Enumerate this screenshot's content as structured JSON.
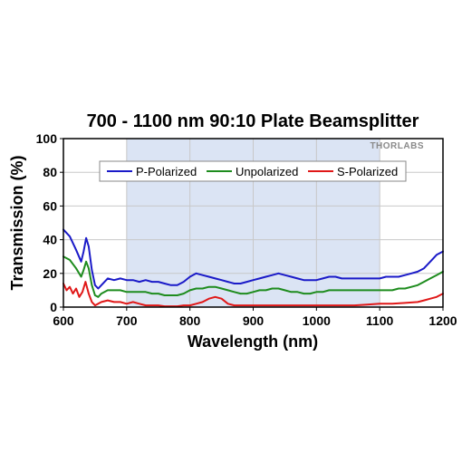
{
  "chart_data": {
    "type": "line",
    "title": "700 - 1100 nm 90:10 Plate Beamsplitter",
    "xlabel": "Wavelength (nm)",
    "ylabel": "Transmission (%)",
    "xlim": [
      600,
      1200
    ],
    "ylim": [
      0,
      100
    ],
    "xticks": [
      600,
      700,
      800,
      900,
      1000,
      1100,
      1200
    ],
    "yticks": [
      0,
      20,
      40,
      60,
      80,
      100
    ],
    "grid": true,
    "legend_position": "top-center",
    "highlight_band": [
      700,
      1100
    ],
    "watermark": "THORLABS",
    "colors": {
      "p_polarized": "#1a1ac8",
      "unpolarized": "#1e8c1e",
      "s_polarized": "#e01818",
      "band": "#dbe4f4",
      "grid": "#c8c8c8"
    },
    "series": [
      {
        "name": "P-Polarized",
        "color_key": "p_polarized",
        "x": [
          600,
          610,
          620,
          628,
          632,
          636,
          640,
          645,
          650,
          655,
          660,
          670,
          680,
          690,
          700,
          710,
          720,
          730,
          740,
          750,
          760,
          770,
          780,
          790,
          800,
          810,
          820,
          830,
          840,
          850,
          860,
          870,
          880,
          890,
          900,
          910,
          920,
          930,
          940,
          950,
          960,
          970,
          980,
          990,
          1000,
          1010,
          1020,
          1030,
          1040,
          1050,
          1060,
          1070,
          1080,
          1090,
          1100,
          1110,
          1120,
          1130,
          1140,
          1150,
          1160,
          1170,
          1180,
          1190,
          1200
        ],
        "values": [
          46,
          42,
          34,
          27,
          33,
          41,
          36,
          22,
          13,
          11,
          13,
          17,
          16,
          17,
          16,
          16,
          15,
          16,
          15,
          15,
          14,
          13,
          13,
          15,
          18,
          20,
          19,
          18,
          17,
          16,
          15,
          14,
          14,
          15,
          16,
          17,
          18,
          19,
          20,
          19,
          18,
          17,
          16,
          16,
          16,
          17,
          18,
          18,
          17,
          17,
          17,
          17,
          17,
          17,
          17,
          18,
          18,
          18,
          19,
          20,
          21,
          23,
          27,
          31,
          33
        ]
      },
      {
        "name": "Unpolarized",
        "color_key": "unpolarized",
        "x": [
          600,
          610,
          620,
          628,
          632,
          636,
          640,
          645,
          650,
          655,
          660,
          670,
          680,
          690,
          700,
          710,
          720,
          730,
          740,
          750,
          760,
          770,
          780,
          790,
          800,
          810,
          820,
          830,
          840,
          850,
          860,
          870,
          880,
          890,
          900,
          910,
          920,
          930,
          940,
          950,
          960,
          970,
          980,
          990,
          1000,
          1010,
          1020,
          1030,
          1040,
          1050,
          1060,
          1070,
          1080,
          1090,
          1100,
          1110,
          1120,
          1130,
          1140,
          1150,
          1160,
          1170,
          1180,
          1190,
          1200
        ],
        "values": [
          30,
          28,
          23,
          18,
          22,
          27,
          23,
          13,
          7,
          6,
          8,
          10,
          10,
          10,
          9,
          9,
          9,
          9,
          8,
          8,
          7,
          7,
          7,
          8,
          10,
          11,
          11,
          12,
          12,
          11,
          10,
          9,
          8,
          8,
          9,
          10,
          10,
          11,
          11,
          10,
          9,
          9,
          8,
          8,
          9,
          9,
          10,
          10,
          10,
          10,
          10,
          10,
          10,
          10,
          10,
          10,
          10,
          11,
          11,
          12,
          13,
          15,
          17,
          19,
          21
        ]
      },
      {
        "name": "S-Polarized",
        "color_key": "s_polarized",
        "x": [
          600,
          605,
          610,
          615,
          620,
          625,
          630,
          635,
          640,
          645,
          650,
          655,
          660,
          670,
          680,
          690,
          700,
          710,
          720,
          730,
          740,
          750,
          760,
          770,
          780,
          790,
          800,
          810,
          820,
          830,
          840,
          850,
          860,
          870,
          880,
          890,
          900,
          920,
          940,
          960,
          980,
          1000,
          1020,
          1040,
          1060,
          1080,
          1100,
          1120,
          1140,
          1160,
          1170,
          1180,
          1190,
          1200
        ],
        "values": [
          14,
          10,
          12,
          8,
          11,
          6,
          9,
          15,
          8,
          3,
          1,
          2,
          3,
          4,
          3,
          3,
          2,
          3,
          2,
          1,
          1,
          1,
          0.5,
          0.5,
          0.5,
          1,
          1,
          2,
          3,
          5,
          6,
          5,
          2,
          1,
          1,
          1,
          1,
          1,
          1,
          1,
          1,
          1,
          1,
          1,
          1,
          1.5,
          2,
          2,
          2.5,
          3,
          4,
          5,
          6,
          8
        ]
      }
    ]
  }
}
